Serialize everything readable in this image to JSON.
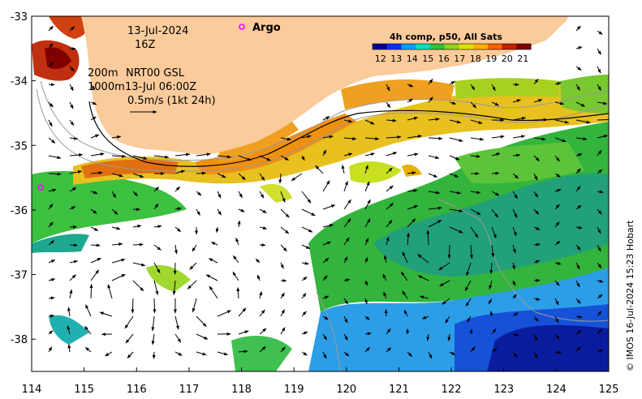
{
  "map": {
    "date": "13-Jul-2024",
    "hour": "16Z",
    "depth_label": "200m",
    "depth2_label": "1000m",
    "product": "NRT00 GSL",
    "product_time": "13-Jul 06:00Z",
    "scale_label": "0.5m/s (1kt 24h)",
    "argo_label": "Argo",
    "credit": "© IMOS 16-Jul-2024 15:23 Hobart"
  },
  "colorbar": {
    "title": "4h comp, p50, All Sats",
    "ticks": [
      "12",
      "13",
      "14",
      "15",
      "16",
      "17",
      "18",
      "19",
      "20",
      "21"
    ],
    "min": 11.5,
    "max": 21.5,
    "colors": [
      "#00008f",
      "#0030ff",
      "#00a0ff",
      "#00e0c0",
      "#30c030",
      "#90d020",
      "#e0e000",
      "#ffb000",
      "#ff6000",
      "#c02000",
      "#800000"
    ]
  },
  "axes": {
    "x_ticks": [
      "114",
      "115",
      "116",
      "117",
      "118",
      "119",
      "120",
      "121",
      "122",
      "123",
      "124",
      "125"
    ],
    "y_ticks": [
      "-33",
      "-34",
      "-35",
      "-36",
      "-37",
      "-38"
    ],
    "x_range": [
      114,
      125
    ],
    "y_range": [
      -38.5,
      -33
    ]
  },
  "colors": {
    "land": "#fbcb9b",
    "argo": "#ff00ff"
  }
}
